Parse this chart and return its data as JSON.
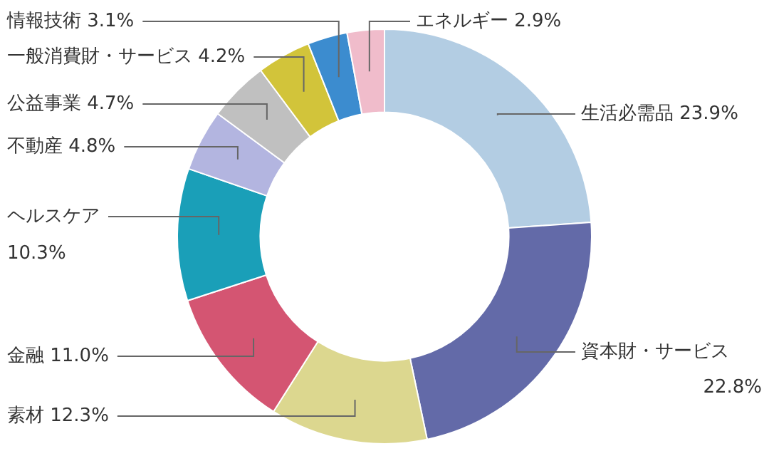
{
  "chart_data": {
    "type": "donut",
    "categories": [
      "生活必需品",
      "資本財・サービス",
      "素材",
      "金融",
      "ヘルスケア",
      "不動産",
      "公益事業",
      "一般消費財・サービス",
      "情報技術",
      "エネルギー"
    ],
    "values": [
      23.9,
      22.8,
      12.3,
      11.0,
      10.3,
      4.8,
      4.7,
      4.2,
      3.1,
      2.9
    ],
    "value_labels": [
      "23.9%",
      "22.8%",
      "12.3%",
      "11.0%",
      "10.3%",
      "4.8%",
      "4.7%",
      "4.2%",
      "3.1%",
      "2.9%"
    ],
    "colors": [
      "#b3cde3",
      "#636aa8",
      "#dcd78f",
      "#d45572",
      "#1a9fb8",
      "#b3b5e0",
      "#c0c0c0",
      "#d2c43a",
      "#3c8ccf",
      "#f0bccb"
    ],
    "legend": false
  }
}
